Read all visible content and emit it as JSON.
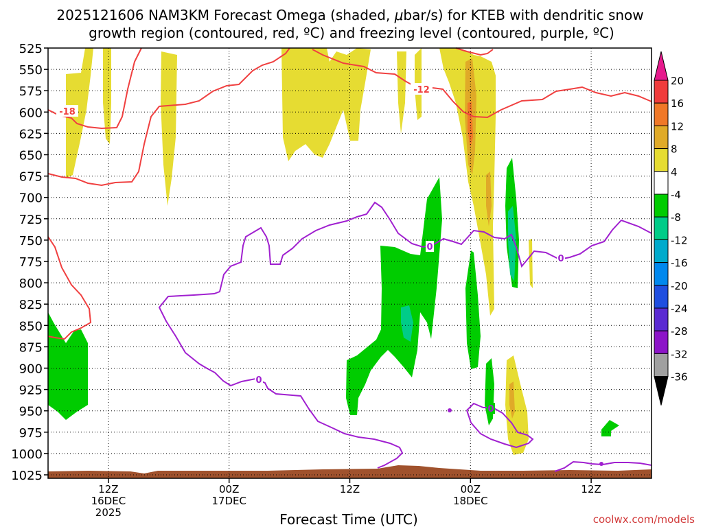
{
  "chart_data": {
    "type": "time-height cross section",
    "title_line1": "2025121606 NAM3KM Forecast Omega (shaded, ",
    "title_mu": "μ",
    "title_line1_end": "bar/s) for KTEB with dendritic snow",
    "title_line2": "growth region (contoured, red, ºC) and freezing level (contoured, purple, ºC)",
    "xlabel": "Forecast Time (UTC)",
    "credit": "coolwx.com/models",
    "y_levels": [
      "525",
      "550",
      "575",
      "600",
      "625",
      "650",
      "675",
      "700",
      "725",
      "750",
      "775",
      "800",
      "825",
      "850",
      "875",
      "900",
      "925",
      "950",
      "975",
      "1000",
      "1025"
    ],
    "y_range": [
      525,
      1025
    ],
    "x_ticks": [
      {
        "hours": 6,
        "line1": "12Z",
        "line2": "16DEC",
        "line3": "2025"
      },
      {
        "hours": 18,
        "line1": "00Z",
        "line2": "17DEC",
        "line3": ""
      },
      {
        "hours": 30,
        "line1": "12Z",
        "line2": "",
        "line3": ""
      },
      {
        "hours": 42,
        "line1": "00Z",
        "line2": "18DEC",
        "line3": ""
      },
      {
        "hours": 54,
        "line1": "12Z",
        "line2": "",
        "line3": ""
      }
    ],
    "x_range_hours": [
      0,
      60
    ],
    "grid": true,
    "colorbar": {
      "labels": [
        "20",
        "16",
        "12",
        "8",
        "4",
        "-4",
        "-8",
        "-12",
        "-16",
        "-20",
        "-24",
        "-28",
        "-32",
        "-36"
      ],
      "colors": [
        "#f03c3c",
        "#f07828",
        "#e0aa28",
        "#e6dc32",
        "#ffffff",
        "#00cc00",
        "#00cc88",
        "#00aacc",
        "#0088ee",
        "#1f4ee0",
        "#5a2ad2",
        "#8c14c8",
        "#a0a0a0"
      ],
      "top_arrow_color": "#e6198c",
      "bottom_arrow_color": "#000000"
    },
    "contour_labels": {
      "dgz_left": "-18",
      "dgz_mid": "-12",
      "freezing": "0"
    },
    "dgz_color": "#f04040",
    "freezing_color": "#a020d0",
    "terrain_color": "#a0522d",
    "shading": [
      {
        "value": "4 to 8",
        "approx_times_hours": [
          1,
          4,
          10,
          13,
          25,
          30,
          37,
          41,
          42,
          46
        ]
      },
      {
        "value": "8 to 12",
        "approx_times_hours": [
          42,
          43,
          44,
          46
        ]
      },
      {
        "value": "-4 to -8",
        "approx_times_hours": [
          0,
          3,
          30,
          35,
          38,
          40,
          41,
          44,
          53
        ]
      },
      {
        "value": "-8 to -12",
        "approx_times_hours": [
          36,
          46
        ]
      }
    ]
  }
}
